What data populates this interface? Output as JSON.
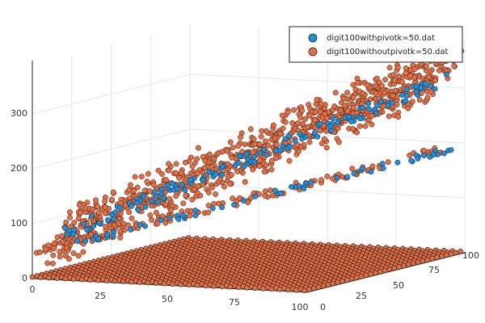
{
  "chart_data": {
    "type": "scatter3d",
    "title": "",
    "xlabel": "",
    "ylabel": "",
    "zlabel": "",
    "xlim": [
      0,
      100
    ],
    "ylim": [
      0,
      100
    ],
    "zlim": [
      0,
      390
    ],
    "x_ticks": [
      "0",
      "25",
      "50",
      "75",
      "100"
    ],
    "y_ticks": [
      "0",
      "25",
      "50",
      "75",
      "100"
    ],
    "z_ticks": [
      "0",
      "100",
      "200",
      "300"
    ],
    "grid": true,
    "legend_position": "top-right",
    "series": [
      {
        "name": "digit100withpivotk=50.dat",
        "color": "#1f8fdc",
        "sample_points": [
          [
            0,
            2,
            1
          ],
          [
            10,
            14,
            48
          ],
          [
            20,
            25,
            85
          ],
          [
            30,
            34,
            118
          ],
          [
            40,
            40,
            140
          ],
          [
            50,
            45,
            162
          ],
          [
            60,
            52,
            190
          ],
          [
            70,
            62,
            230
          ],
          [
            80,
            70,
            270
          ],
          [
            90,
            78,
            300
          ],
          [
            100,
            86,
            335
          ],
          [
            100,
            96,
            372
          ],
          [
            30,
            60,
            160
          ],
          [
            45,
            68,
            190
          ],
          [
            60,
            74,
            230
          ],
          [
            75,
            82,
            270
          ],
          [
            88,
            90,
            310
          ],
          [
            20,
            30,
            95
          ],
          [
            40,
            48,
            130
          ],
          [
            60,
            62,
            160
          ],
          [
            80,
            75,
            185
          ],
          [
            100,
            92,
            185
          ]
        ]
      },
      {
        "name": "digit100withoutpivotk=50.dat",
        "color": "#e26f46",
        "sample_points": [
          [
            0,
            0,
            0
          ],
          [
            10,
            10,
            40
          ],
          [
            20,
            20,
            80
          ],
          [
            30,
            30,
            120
          ],
          [
            40,
            40,
            160
          ],
          [
            50,
            50,
            200
          ],
          [
            60,
            60,
            240
          ],
          [
            70,
            70,
            280
          ],
          [
            80,
            80,
            320
          ],
          [
            90,
            90,
            350
          ],
          [
            100,
            100,
            375
          ],
          [
            20,
            15,
            60
          ],
          [
            40,
            30,
            120
          ],
          [
            60,
            45,
            180
          ],
          [
            80,
            60,
            240
          ],
          [
            100,
            75,
            300
          ],
          [
            15,
            20,
            90
          ],
          [
            30,
            40,
            170
          ],
          [
            45,
            60,
            250
          ],
          [
            60,
            80,
            320
          ],
          [
            75,
            100,
            380
          ],
          [
            30,
            20,
            90
          ],
          [
            50,
            35,
            140
          ],
          [
            70,
            50,
            180
          ],
          [
            90,
            62,
            210
          ],
          [
            100,
            88,
            200
          ],
          [
            60,
            90,
            150
          ],
          [
            75,
            93,
            160
          ],
          [
            90,
            96,
            180
          ],
          [
            100,
            99,
            222
          ],
          [
            0,
            100,
            0
          ],
          [
            50,
            100,
            0
          ],
          [
            100,
            100,
            0
          ],
          [
            100,
            50,
            0
          ],
          [
            50,
            50,
            0
          ]
        ]
      }
    ]
  }
}
